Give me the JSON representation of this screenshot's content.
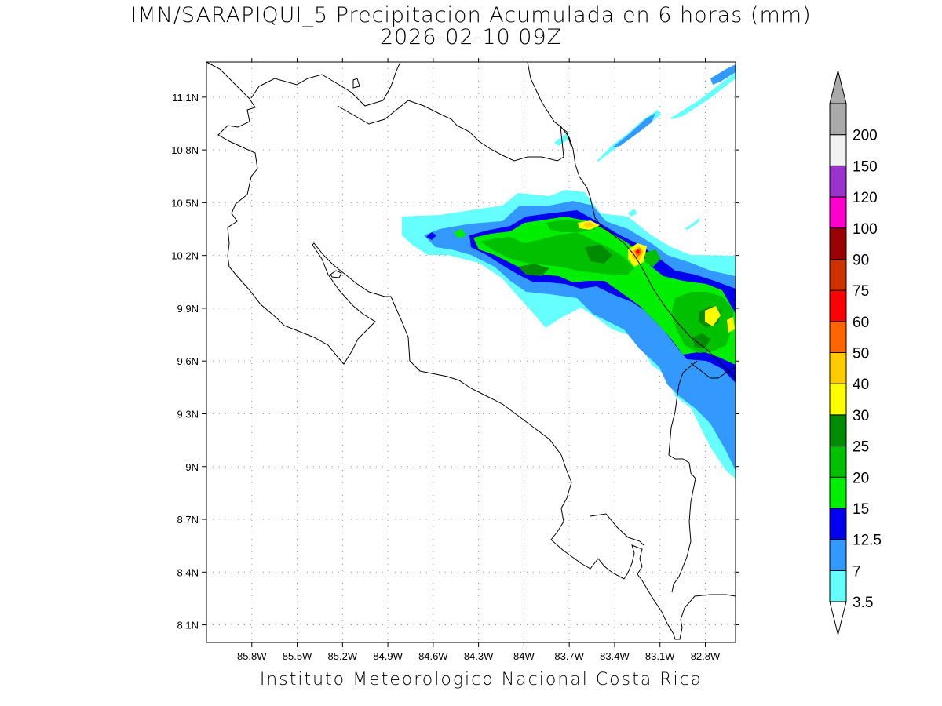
{
  "header": {
    "title_line1": "IMN/SARAPIQUI_5 Precipitacion Acumulada en 6 horas (mm)",
    "title_line2": "2026-02-10 09Z"
  },
  "footer": {
    "credit": "Instituto Meteorologico Nacional Costa Rica"
  },
  "map": {
    "lon_range": [
      -86.1,
      -82.6
    ],
    "lat_range": [
      8.0,
      11.3
    ],
    "lon_ticks": [
      {
        "value": -85.8,
        "label": "85.8W"
      },
      {
        "value": -85.5,
        "label": "85.5W"
      },
      {
        "value": -85.2,
        "label": "85.2W"
      },
      {
        "value": -84.9,
        "label": "84.9W"
      },
      {
        "value": -84.6,
        "label": "84.6W"
      },
      {
        "value": -84.3,
        "label": "84.3W"
      },
      {
        "value": -84.0,
        "label": "84W"
      },
      {
        "value": -83.7,
        "label": "83.7W"
      },
      {
        "value": -83.4,
        "label": "83.4W"
      },
      {
        "value": -83.1,
        "label": "83.1W"
      },
      {
        "value": -82.8,
        "label": "82.8W"
      }
    ],
    "lat_ticks": [
      {
        "value": 11.1,
        "label": "11.1N"
      },
      {
        "value": 10.8,
        "label": "10.8N"
      },
      {
        "value": 10.5,
        "label": "10.5N"
      },
      {
        "value": 10.2,
        "label": "10.2N"
      },
      {
        "value": 9.9,
        "label": "9.9N"
      },
      {
        "value": 9.6,
        "label": "9.6N"
      },
      {
        "value": 9.3,
        "label": "9.3N"
      },
      {
        "value": 9.0,
        "label": "9N"
      },
      {
        "value": 8.7,
        "label": "8.7N"
      },
      {
        "value": 8.4,
        "label": "8.4N"
      },
      {
        "value": 8.1,
        "label": "8.1N"
      }
    ],
    "grid": "dotted"
  },
  "legend": {
    "position": "right",
    "bins": [
      {
        "label": "3.5",
        "color": "#66ffff"
      },
      {
        "label": "7",
        "color": "#3399ff"
      },
      {
        "label": "12.5",
        "color": "#0000ee"
      },
      {
        "label": "15",
        "color": "#00ee00"
      },
      {
        "label": "20",
        "color": "#00c000"
      },
      {
        "label": "25",
        "color": "#008c00"
      },
      {
        "label": "30",
        "color": "#ffff00"
      },
      {
        "label": "40",
        "color": "#ffcc00"
      },
      {
        "label": "50",
        "color": "#ff6600"
      },
      {
        "label": "60",
        "color": "#ff0000"
      },
      {
        "label": "75",
        "color": "#cc3300"
      },
      {
        "label": "90",
        "color": "#990000"
      },
      {
        "label": "100",
        "color": "#ff00cc"
      },
      {
        "label": "120",
        "color": "#9933cc"
      },
      {
        "label": "150",
        "color": "#f2f2f2"
      },
      {
        "label": "200",
        "color": "#aaaaaa"
      }
    ],
    "under_color": "#ffffff",
    "over_color": "#aaaaaa"
  }
}
